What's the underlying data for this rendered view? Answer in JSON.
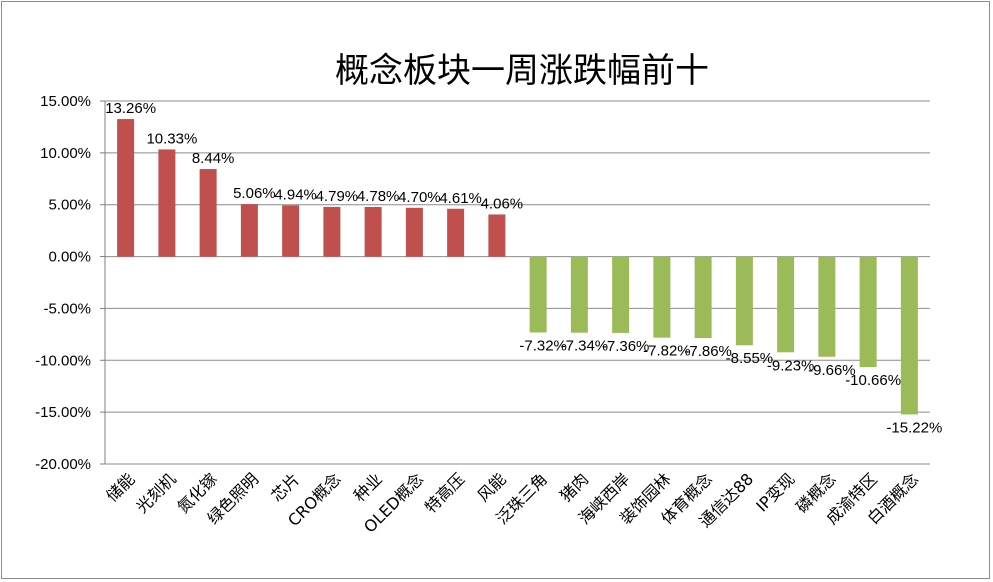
{
  "chart_data": {
    "type": "bar",
    "title": "概念板块一周涨跌幅前十",
    "xlabel": "",
    "ylabel": "",
    "ylim": [
      -20,
      15
    ],
    "y_ticks": [
      "15.00%",
      "10.00%",
      "5.00%",
      "0.00%",
      "-5.00%",
      "-10.00%",
      "-15.00%",
      "-20.00%"
    ],
    "y_tick_values": [
      15,
      10,
      5,
      0,
      -5,
      -10,
      -15,
      -20
    ],
    "grid": true,
    "legend": "none",
    "colors": {
      "positive": "#c0504d",
      "negative": "#9bbb59"
    },
    "categories": [
      "储能",
      "光刻机",
      "氮化镓",
      "绿色照明",
      "芯片",
      "CRO概念",
      "种业",
      "OLED概念",
      "特高压",
      "风能",
      "泛珠三角",
      "猪肉",
      "海峡西岸",
      "装饰园林",
      "体育概念",
      "通信达88",
      "IP变现",
      "磷概念",
      "成渝特区",
      "白酒概念"
    ],
    "values": [
      13.26,
      10.33,
      8.44,
      5.06,
      4.94,
      4.79,
      4.78,
      4.7,
      4.61,
      4.06,
      -7.32,
      -7.34,
      -7.36,
      -7.82,
      -7.86,
      -8.55,
      -9.23,
      -9.66,
      -10.66,
      -15.22
    ],
    "value_labels": [
      "13.26%",
      "10.33%",
      "8.44%",
      "5.06%",
      "4.94%",
      "4.79%",
      "4.78%",
      "4.70%",
      "4.61%",
      "4.06%",
      "-7.32%",
      "-7.34%",
      "-7.36%",
      "-7.82%",
      "-7.86%",
      "-8.55%",
      "-9.23%",
      "-9.66%",
      "-10.66%",
      "-15.22%"
    ]
  }
}
